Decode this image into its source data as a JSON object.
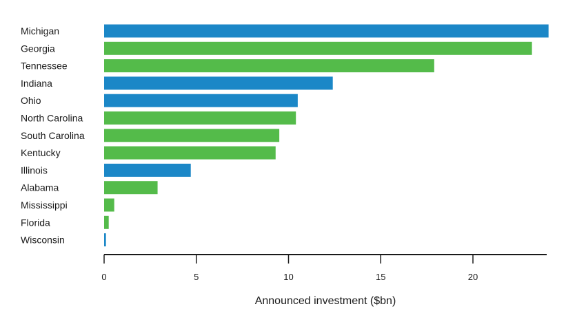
{
  "chart_data": {
    "type": "bar",
    "orientation": "horizontal",
    "title": "",
    "xlabel": "Announced investment ($bn)",
    "ylabel": "",
    "xlim": [
      0,
      24
    ],
    "xticks": [
      0,
      5,
      10,
      15,
      20
    ],
    "grid": false,
    "categories": [
      "Michigan",
      "Georgia",
      "Tennessee",
      "Indiana",
      "Ohio",
      "North Carolina",
      "South Carolina",
      "Kentucky",
      "Illinois",
      "Alabama",
      "Mississippi",
      "Florida",
      "Wisconsin"
    ],
    "values": [
      24.1,
      23.2,
      17.9,
      12.4,
      10.5,
      10.4,
      9.5,
      9.3,
      4.7,
      2.9,
      0.55,
      0.25,
      0.1
    ],
    "groups": [
      "blue",
      "green",
      "green",
      "blue",
      "blue",
      "green",
      "green",
      "green",
      "blue",
      "green",
      "green",
      "green",
      "blue"
    ],
    "colors": {
      "blue": "#1b87c7",
      "green": "#54bb4a",
      "axis": "#1a1a1a"
    }
  }
}
